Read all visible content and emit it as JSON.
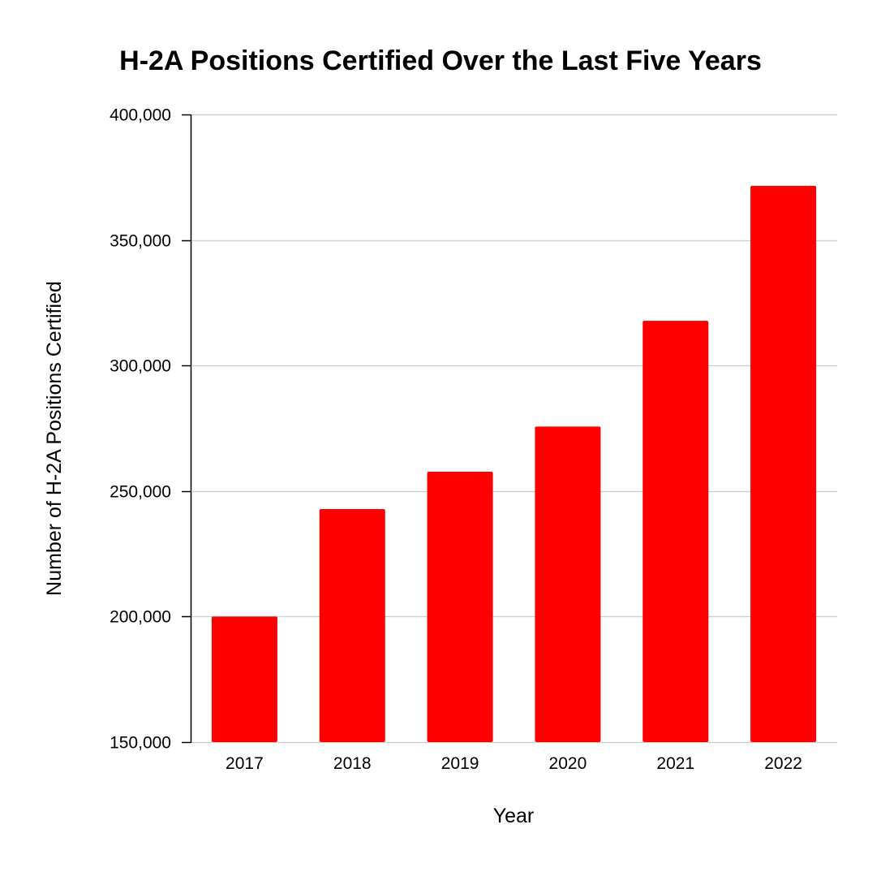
{
  "chart_data": {
    "type": "bar",
    "title": "H-2A Positions Certified Over the Last Five Years",
    "xlabel": "Year",
    "ylabel": "Number of H-2A Positions Certified",
    "categories": [
      "2017",
      "2018",
      "2019",
      "2020",
      "2021",
      "2022"
    ],
    "values": [
      200000,
      242800,
      257700,
      275700,
      317800,
      371600
    ],
    "ylim": [
      150000,
      400000
    ],
    "yticks": [
      150000,
      200000,
      250000,
      300000,
      350000,
      400000
    ],
    "ytick_labels": [
      "150,000",
      "200,000",
      "250,000",
      "300,000",
      "350,000",
      "400,000"
    ],
    "grid": true,
    "legend": "none",
    "bar_color": "#ff0000",
    "grid_color": "#cccccc",
    "axis_color": "#000000"
  }
}
